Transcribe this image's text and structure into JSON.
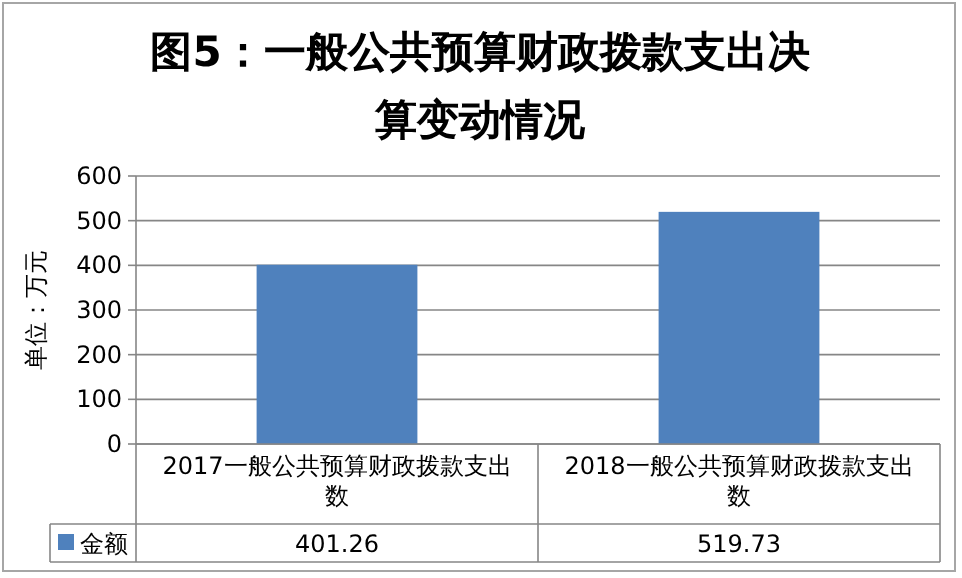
{
  "chart_data": {
    "type": "bar",
    "title": "图5：一般公共预算财政拨款支出决算变动情况",
    "ylabel": "单位：万元",
    "categories": [
      "2017一般公共预算财政拨款支出数",
      "2018一般公共预算财政拨款支出数"
    ],
    "series": [
      {
        "name": "金额",
        "color": "#4f81bd",
        "values": [
          401.26,
          519.73
        ]
      }
    ],
    "ylim": [
      0,
      600
    ],
    "yticks": [
      0,
      100,
      200,
      300,
      400,
      500,
      600
    ],
    "grid": "y",
    "legend": "bottom",
    "data_labels": true
  }
}
